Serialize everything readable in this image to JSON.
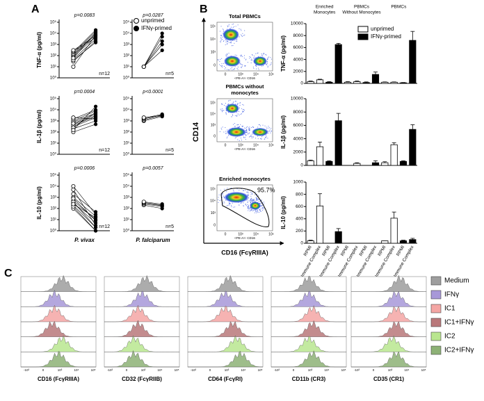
{
  "panel_labels": [
    "A",
    "B",
    "C"
  ],
  "chart_data": [
    {
      "type": "paired",
      "ylabel": "TNF-α (pg/ml)",
      "p_value": "p=0.0083",
      "n_label": "n=12",
      "log": true,
      "ylim": [
        1,
        100000
      ],
      "yticks": [
        {
          "value": 1,
          "label": "10⁰"
        },
        {
          "value": 10,
          "label": "10¹"
        },
        {
          "value": 100,
          "label": "10²"
        },
        {
          "value": 1000,
          "label": "10³"
        },
        {
          "value": 10000,
          "label": "10⁴"
        },
        {
          "value": 100000,
          "label": "10⁵"
        }
      ],
      "series": [
        {
          "values": [
            30,
            50,
            80,
            100,
            120,
            150,
            200,
            250,
            300,
            40,
            60,
            10
          ]
        },
        {
          "values": [
            2000,
            3000,
            5000,
            8000,
            10000,
            15000,
            20000,
            4000,
            6000,
            1500,
            12000,
            7000
          ]
        }
      ]
    },
    {
      "type": "paired",
      "p_value": "p=0.0287",
      "n_label": "n=5",
      "log": true,
      "ylim": [
        1,
        100000
      ],
      "yticks": [
        {
          "value": 1,
          "label": "10⁰"
        },
        {
          "value": 10,
          "label": "10¹"
        },
        {
          "value": 100,
          "label": "10²"
        },
        {
          "value": 1000,
          "label": "10³"
        },
        {
          "value": 10000,
          "label": "10⁴"
        },
        {
          "value": 100000,
          "label": "10⁵"
        }
      ],
      "series": [
        {
          "name": "unprimed",
          "values": [
            10,
            10,
            10,
            10,
            10
          ]
        },
        {
          "name": "IFNγ-primed",
          "values": [
            300,
            1000,
            2000,
            5000,
            10000
          ]
        }
      ]
    },
    {
      "type": "paired",
      "ylabel": "IL-1β (pg/ml)",
      "p_value": "p=0.0004",
      "n_label": "n=12",
      "log": true,
      "ylim": [
        1,
        100000
      ],
      "yticks": [
        {
          "value": 1,
          "label": "10⁰"
        },
        {
          "value": 10,
          "label": "10¹"
        },
        {
          "value": 100,
          "label": "10²"
        },
        {
          "value": 1000,
          "label": "10³"
        },
        {
          "value": 10000,
          "label": "10⁴"
        },
        {
          "value": 100000,
          "label": "10⁵"
        }
      ],
      "series": [
        {
          "values": [
            100,
            200,
            300,
            500,
            800,
            1000,
            1500,
            2000,
            400,
            600,
            250,
            150
          ]
        },
        {
          "values": [
            500,
            1000,
            2000,
            3000,
            5000,
            8000,
            10000,
            1500,
            2500,
            4000,
            6000,
            20000
          ]
        }
      ]
    },
    {
      "type": "paired",
      "p_value": "p<0.0001",
      "n_label": "n=5",
      "log": true,
      "ylim": [
        1,
        100000
      ],
      "yticks": [
        {
          "value": 1,
          "label": "10⁰"
        },
        {
          "value": 10,
          "label": "10¹"
        },
        {
          "value": 100,
          "label": "10²"
        },
        {
          "value": 1000,
          "label": "10³"
        },
        {
          "value": 10000,
          "label": "10⁴"
        },
        {
          "value": 100000,
          "label": "10⁵"
        }
      ],
      "series": [
        {
          "values": [
            1000,
            1200,
            1500,
            1800,
            2000
          ]
        },
        {
          "values": [
            2500,
            3000,
            3500,
            4000,
            3000
          ]
        }
      ]
    },
    {
      "type": "paired",
      "ylabel": "IL-10 (pg/ml)",
      "p_value": "p=0.0006",
      "n_label": "n=12",
      "xlabel": "P. vivax",
      "log": true,
      "ylim": [
        1,
        100000
      ],
      "yticks": [
        {
          "value": 1,
          "label": "10⁰"
        },
        {
          "value": 10,
          "label": "10¹"
        },
        {
          "value": 100,
          "label": "10²"
        },
        {
          "value": 1000,
          "label": "10³"
        },
        {
          "value": 10000,
          "label": "10⁴"
        },
        {
          "value": 100000,
          "label": "10⁵"
        }
      ],
      "series": [
        {
          "values": [
            100,
            200,
            300,
            500,
            1000,
            2000,
            5000,
            150,
            400,
            800,
            250,
            10000
          ]
        },
        {
          "values": [
            1,
            2,
            5,
            10,
            20,
            50,
            3,
            1,
            2,
            8,
            15,
            30
          ]
        }
      ]
    },
    {
      "type": "paired",
      "p_value": "p=0.0057",
      "n_label": "n=5",
      "xlabel": "P. falciparum",
      "log": true,
      "ylim": [
        1,
        100000
      ],
      "yticks": [
        {
          "value": 1,
          "label": "10⁰"
        },
        {
          "value": 10,
          "label": "10¹"
        },
        {
          "value": 100,
          "label": "10²"
        },
        {
          "value": 1000,
          "label": "10³"
        },
        {
          "value": 10000,
          "label": "10⁴"
        },
        {
          "value": 100000,
          "label": "10⁵"
        }
      ],
      "series": [
        {
          "values": [
            200,
            250,
            300,
            350,
            400
          ]
        },
        {
          "values": [
            100,
            150,
            180,
            200,
            250
          ]
        }
      ]
    },
    {
      "type": "bar",
      "ylabel": "TNF-α (pg/ml)",
      "group_labels": [
        [
          "Enriched",
          "Monocytes"
        ],
        [
          "PBMCs",
          "Without Monocytes"
        ],
        [
          "PBMCs"
        ]
      ],
      "ylim": [
        0,
        10000
      ],
      "yticks": [
        0,
        2000,
        4000,
        6000,
        8000,
        10000
      ],
      "series": [
        {
          "name": "unprimed",
          "color": "#ffffff",
          "values": [
            300,
            600,
            null,
            null,
            200,
            300,
            null,
            null,
            200,
            200,
            null,
            null
          ],
          "errors": [
            100,
            100,
            null,
            null,
            100,
            100,
            null,
            null,
            50,
            50,
            null,
            null
          ]
        },
        {
          "name": "IFNγ-primed",
          "color": "#000000",
          "values": [
            null,
            null,
            200,
            6500,
            null,
            null,
            150,
            1500,
            null,
            null,
            100,
            7200
          ],
          "errors": [
            null,
            null,
            100,
            200,
            null,
            null,
            100,
            400,
            null,
            null,
            50,
            1500
          ]
        }
      ]
    },
    {
      "type": "bar",
      "ylabel": "IL-1β (pg/ml)",
      "ylim": [
        0,
        10000
      ],
      "yticks": [
        0,
        2000,
        4000,
        6000,
        8000,
        10000
      ],
      "series": [
        {
          "color": "#ffffff",
          "values": [
            700,
            2800,
            null,
            null,
            0,
            300,
            null,
            null,
            400,
            3100,
            null,
            null
          ],
          "errors": [
            100,
            700,
            null,
            null,
            0,
            100,
            null,
            null,
            150,
            300,
            null,
            null
          ]
        },
        {
          "color": "#000000",
          "values": [
            null,
            null,
            600,
            6700,
            null,
            null,
            0,
            400,
            null,
            null,
            600,
            5400
          ],
          "errors": [
            null,
            null,
            100,
            1100,
            null,
            null,
            0,
            300,
            null,
            null,
            100,
            700
          ]
        }
      ]
    },
    {
      "type": "bar",
      "ylabel": "IL-10 (pg/ml)",
      "categories": [
        "RPMI",
        "Immune Complex",
        "RPMI",
        "Immune Complex",
        "RPMI",
        "Immune Complex",
        "RPMI",
        "Immune Complex",
        "RPMI",
        "Immune Complex",
        "RPMI",
        "Immune Complex"
      ],
      "ylim": [
        0,
        1000
      ],
      "yticks": [
        0,
        200,
        400,
        600,
        800,
        1000
      ],
      "series": [
        {
          "color": "#ffffff",
          "values": [
            40,
            610,
            null,
            null,
            0,
            0,
            null,
            null,
            40,
            410,
            null,
            null
          ],
          "errors": [
            10,
            200,
            null,
            null,
            0,
            0,
            null,
            null,
            0,
            100,
            null,
            null
          ]
        },
        {
          "color": "#000000",
          "values": [
            null,
            null,
            0,
            190,
            null,
            null,
            0,
            0,
            null,
            null,
            40,
            60
          ],
          "errors": [
            null,
            null,
            0,
            50,
            null,
            null,
            0,
            0,
            null,
            null,
            10,
            20
          ]
        }
      ]
    }
  ],
  "flow": {
    "titles": [
      [
        "Total PBMCs"
      ],
      [
        "PBMCs without",
        "monocytes"
      ],
      [
        "Enriched monocytes"
      ]
    ],
    "y_axis": "CD14",
    "x_axis": "CD16 (FcγRIIIA)",
    "gate": "95.7%",
    "x_tick_title": "<PE-A>: CD16",
    "x_ticks": [
      "0",
      "10³",
      "10⁴",
      "10⁵"
    ],
    "y_ticks": [
      "0",
      "10³",
      "10⁴",
      "10⁵"
    ]
  },
  "histograms": {
    "panels": [
      {
        "label": "CD16 (FcγRIIIA)"
      },
      {
        "label": "CD32 (FcγRIIB)"
      },
      {
        "label": "CD64 (FcγRI)"
      },
      {
        "label": "CD11b (CR3)"
      },
      {
        "label": "CD35 (CR1)"
      }
    ],
    "x_ticks": [
      "-10³",
      "0",
      "10³",
      "10⁴",
      "10⁵"
    ],
    "legend": [
      {
        "name": "Medium",
        "color": "#9e9e9e"
      },
      {
        "name": "IFNγ",
        "color": "#a798d8"
      },
      {
        "name": "IC1",
        "color": "#f4a6a4"
      },
      {
        "name": "IC1+IFNγ",
        "color": "#b9787a"
      },
      {
        "name": "IC2",
        "color": "#b9e68f"
      },
      {
        "name": "IC2+IFNγ",
        "color": "#8db176"
      }
    ]
  }
}
